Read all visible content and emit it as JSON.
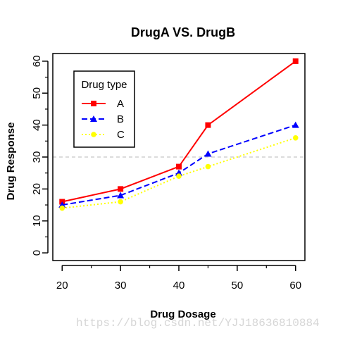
{
  "chart_data": {
    "type": "line",
    "title": "DrugA VS. DrugB",
    "xlabel": "Drug Dosage",
    "ylabel": "Drug Response",
    "x": [
      20,
      30,
      40,
      45,
      60
    ],
    "xticks": [
      20,
      30,
      40,
      50,
      60
    ],
    "yticks": [
      0,
      10,
      20,
      30,
      40,
      50,
      60
    ],
    "xlim": [
      18.4,
      61.6
    ],
    "ylim": [
      -2.4,
      62.4
    ],
    "reference_line": {
      "y": 30,
      "style": "dashed",
      "color": "#c8c8c8"
    },
    "legend": {
      "title": "Drug type",
      "position": "top-left"
    },
    "series": [
      {
        "name": "A",
        "values": [
          16,
          20,
          27,
          40,
          60
        ],
        "color": "#ff0000",
        "line": "solid",
        "marker": "square"
      },
      {
        "name": "B",
        "values": [
          15,
          18,
          25,
          31,
          40
        ],
        "color": "#0000ff",
        "line": "dashed",
        "marker": "triangle"
      },
      {
        "name": "C",
        "values": [
          14,
          16,
          24,
          27,
          36
        ],
        "color": "#ffff00",
        "line": "dotted",
        "marker": "circle"
      }
    ]
  },
  "watermark": "https://blog.csdn.net/YJJ18636810884"
}
